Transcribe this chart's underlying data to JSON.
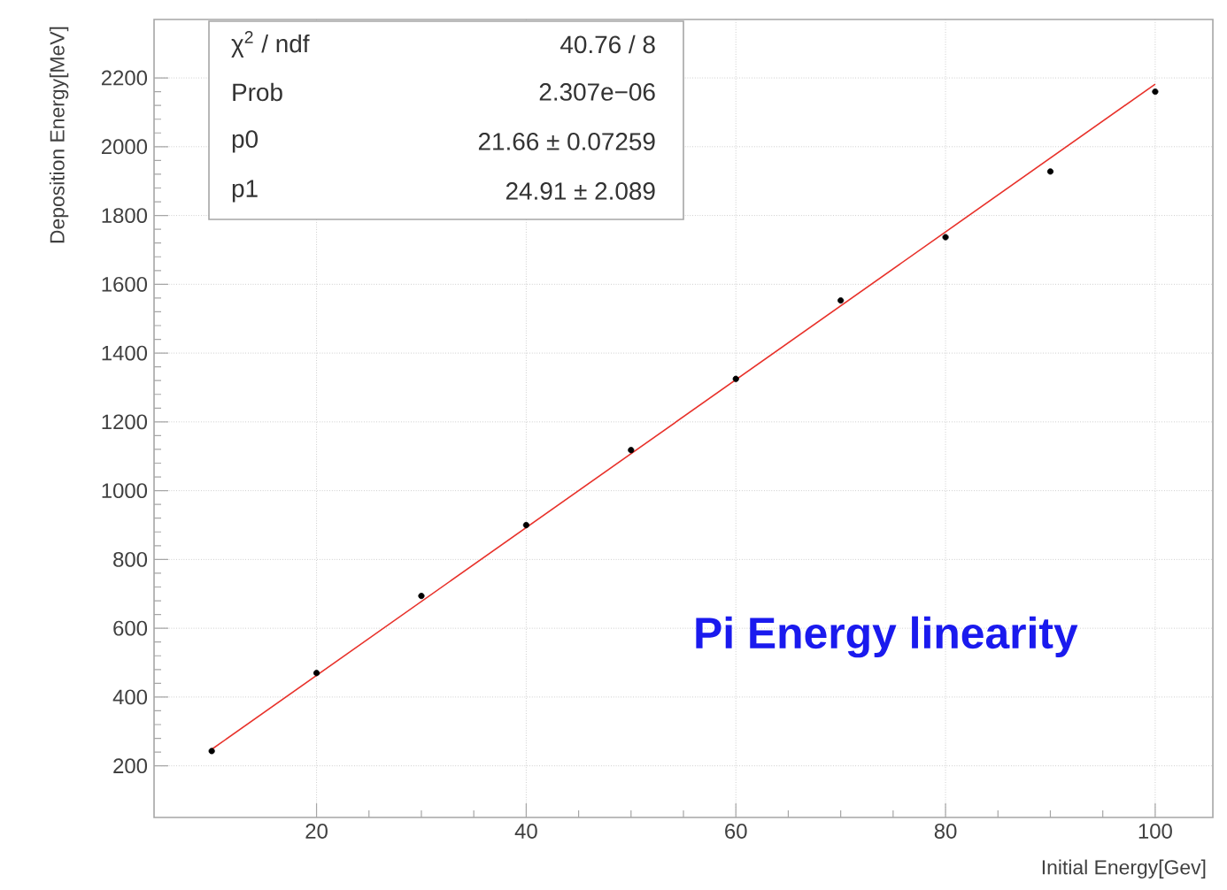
{
  "chart_data": {
    "type": "scatter",
    "xlabel": "Initial Energy[Gev]",
    "ylabel": "Deposition Energy[MeV]",
    "annotations": [
      "χ$^{2}$ / ndf",
      "40.76 / 8",
      "Prob",
      "2.307e−06",
      "p0",
      "21.66 ± 0.07259",
      "p1",
      "24.91 ± 2.089",
      "Pi Energy linearity"
    ],
    "x": [
      10,
      20,
      30,
      40,
      50,
      60,
      70,
      80,
      90,
      100
    ],
    "series": [
      {
        "color": "#000000",
        "marker": "circle",
        "values": [
          243,
          470,
          694,
          900,
          1118,
          1325,
          1553,
          1737,
          1928,
          2160
        ]
      },
      {
        "type": "line",
        "color": "#e8312a",
        "marker": "none",
        "x": [
          10,
          100
        ],
        "values": [
          248,
          2182
        ]
      }
    ],
    "xlim": [
      4.5,
      105.5
    ],
    "ylim": [
      50,
      2370
    ],
    "xticks": [
      20,
      40,
      60,
      80,
      100
    ],
    "yticks": [
      200,
      400,
      600,
      800,
      1000,
      1200,
      1400,
      1600,
      1800,
      2000,
      2200
    ],
    "grid": true
  }
}
